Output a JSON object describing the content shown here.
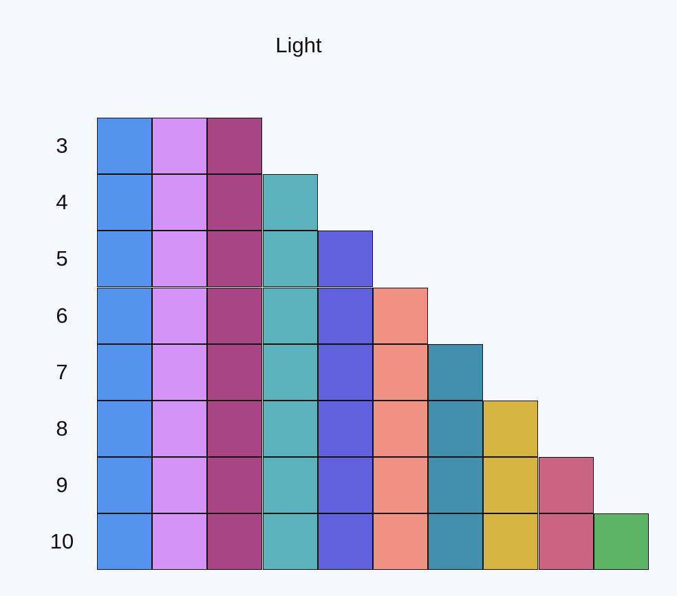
{
  "title": "Light",
  "palette": [
    {
      "name": "blue",
      "color": "#5494ef"
    },
    {
      "name": "lavender",
      "color": "#d592f7"
    },
    {
      "name": "magenta",
      "color": "#a84585"
    },
    {
      "name": "teal",
      "color": "#5bb1bc"
    },
    {
      "name": "indigo",
      "color": "#6161db"
    },
    {
      "name": "salmon",
      "color": "#ef9283"
    },
    {
      "name": "dark-teal",
      "color": "#418fac"
    },
    {
      "name": "gold",
      "color": "#d5b441"
    },
    {
      "name": "rose",
      "color": "#c96583"
    },
    {
      "name": "green",
      "color": "#5db464"
    }
  ],
  "rows": [
    {
      "label": "3",
      "count": 3
    },
    {
      "label": "4",
      "count": 4
    },
    {
      "label": "5",
      "count": 5
    },
    {
      "label": "6",
      "count": 6
    },
    {
      "label": "7",
      "count": 7
    },
    {
      "label": "8",
      "count": 8
    },
    {
      "label": "9",
      "count": 9
    },
    {
      "label": "10",
      "count": 10
    }
  ]
}
